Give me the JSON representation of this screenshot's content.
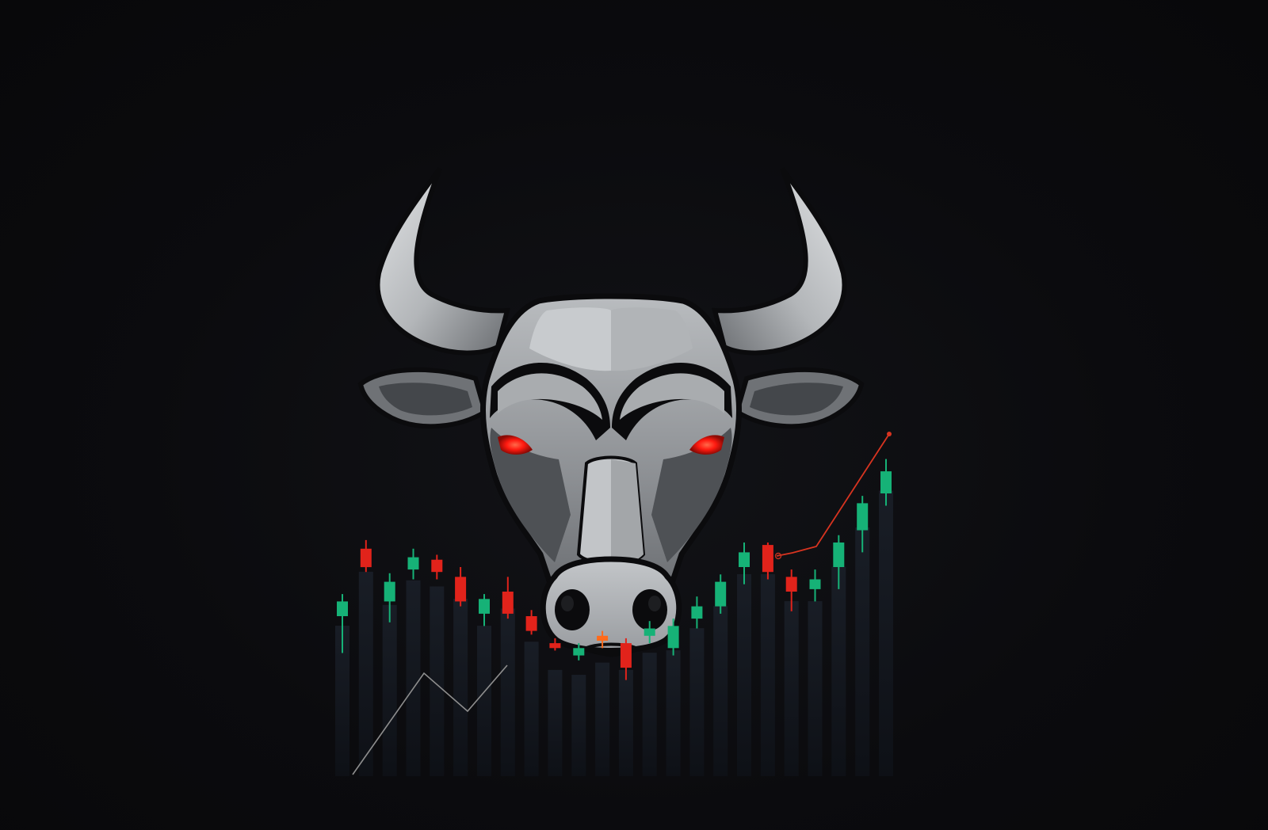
{
  "scene": {
    "subject": "bull-head",
    "background_color": "#0a0a0c",
    "colors": {
      "horn_light": "#d6d8da",
      "horn_mid": "#a7aaad",
      "horn_dark": "#5d6064",
      "head_light": "#b4b7ba",
      "head_mid": "#8e9195",
      "head_dark": "#4a4d51",
      "outline": "#0b0b0d",
      "eye": "#ff1a10",
      "candle_up": "#16b277",
      "candle_down": "#e1231b",
      "candle_accent": "#ff6a1a",
      "shadow_bar": "#161a22",
      "trend_line_light": "#9a9a9a",
      "trend_line_red": "#d83420"
    }
  },
  "candles": [
    {
      "dir": "up",
      "open": 40,
      "close": 52,
      "low": 10,
      "high": 58
    },
    {
      "dir": "down",
      "open": 95,
      "close": 80,
      "low": 76,
      "high": 102
    },
    {
      "dir": "up",
      "open": 52,
      "close": 68,
      "low": 35,
      "high": 75
    },
    {
      "dir": "up",
      "open": 78,
      "close": 88,
      "low": 70,
      "high": 95
    },
    {
      "dir": "down",
      "open": 86,
      "close": 76,
      "low": 70,
      "high": 90
    },
    {
      "dir": "down",
      "open": 72,
      "close": 52,
      "low": 48,
      "high": 80
    },
    {
      "dir": "up",
      "open": 42,
      "close": 54,
      "low": 32,
      "high": 58
    },
    {
      "dir": "down",
      "open": 60,
      "close": 42,
      "low": 38,
      "high": 72
    },
    {
      "dir": "down",
      "open": 40,
      "close": 28,
      "low": 25,
      "high": 45
    },
    {
      "dir": "down",
      "open": 18,
      "close": 14,
      "low": 12,
      "high": 22
    },
    {
      "dir": "up",
      "open": 8,
      "close": 14,
      "low": 4,
      "high": 18
    },
    {
      "dir": "accent",
      "open": 24,
      "close": 20,
      "low": 14,
      "high": 28
    },
    {
      "dir": "down",
      "open": 18,
      "close": -2,
      "low": -12,
      "high": 22
    },
    {
      "dir": "up",
      "open": 24,
      "close": 30,
      "low": 18,
      "high": 36
    },
    {
      "dir": "up",
      "open": 14,
      "close": 32,
      "low": 8,
      "high": 38
    },
    {
      "dir": "up",
      "open": 38,
      "close": 48,
      "low": 30,
      "high": 56
    },
    {
      "dir": "up",
      "open": 48,
      "close": 68,
      "low": 42,
      "high": 74
    },
    {
      "dir": "up",
      "open": 80,
      "close": 92,
      "low": 66,
      "high": 100
    },
    {
      "dir": "down",
      "open": 98,
      "close": 76,
      "low": 70,
      "high": 100
    },
    {
      "dir": "down",
      "open": 72,
      "close": 60,
      "low": 44,
      "high": 78
    },
    {
      "dir": "up",
      "open": 62,
      "close": 70,
      "low": 52,
      "high": 78
    },
    {
      "dir": "up",
      "open": 80,
      "close": 100,
      "low": 62,
      "high": 106
    },
    {
      "dir": "up",
      "open": 110,
      "close": 132,
      "low": 92,
      "high": 138
    },
    {
      "dir": "up",
      "open": 140,
      "close": 158,
      "low": 130,
      "high": 168
    }
  ]
}
